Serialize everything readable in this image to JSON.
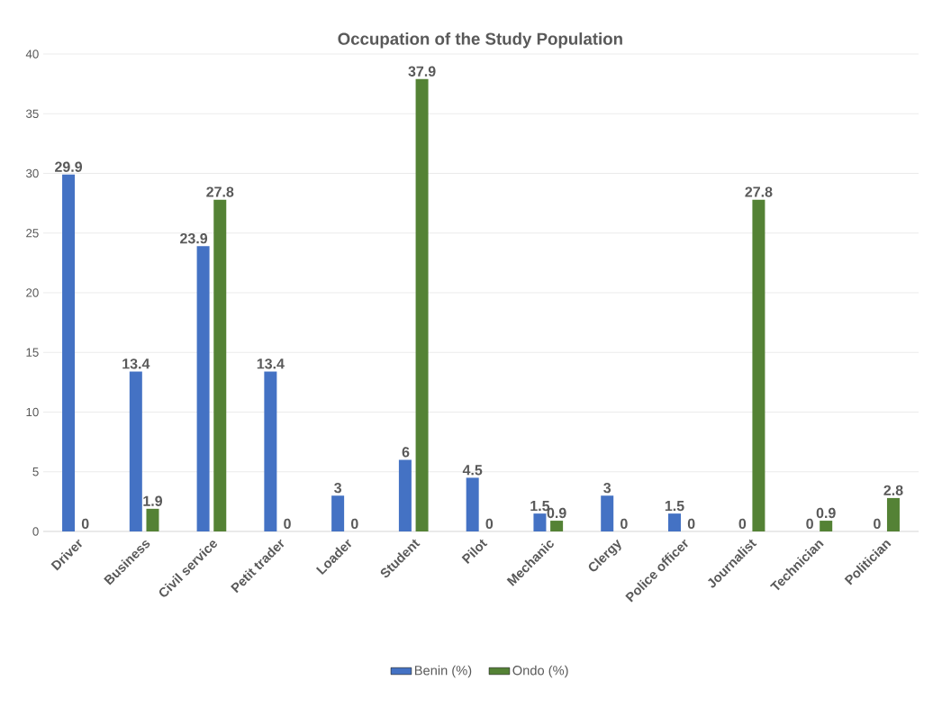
{
  "chart_data": {
    "type": "bar",
    "title": "Occupation of the Study Population",
    "categories": [
      "Driver",
      "Business",
      "Civil service",
      "Petit trader",
      "Loader",
      "Student",
      "Pilot",
      "Mechanic",
      "Clergy",
      "Police officer",
      "Journalist",
      "Technician",
      "Politician"
    ],
    "series": [
      {
        "name": "Benin (%)",
        "color": "#4472c4",
        "values": [
          29.9,
          13.4,
          23.9,
          13.4,
          3,
          6,
          4.5,
          1.5,
          3,
          1.5,
          0,
          0,
          0
        ]
      },
      {
        "name": "Ondo (%)",
        "color": "#548235",
        "values": [
          0,
          1.9,
          27.8,
          0,
          0,
          37.9,
          0,
          0.9,
          0,
          0,
          27.8,
          0.9,
          2.8
        ]
      }
    ],
    "ylim": [
      0,
      40
    ],
    "yticks": [
      0,
      5,
      10,
      15,
      20,
      25,
      30,
      35,
      40
    ],
    "grid": "y",
    "legend": "bottom",
    "data_labels": true
  }
}
